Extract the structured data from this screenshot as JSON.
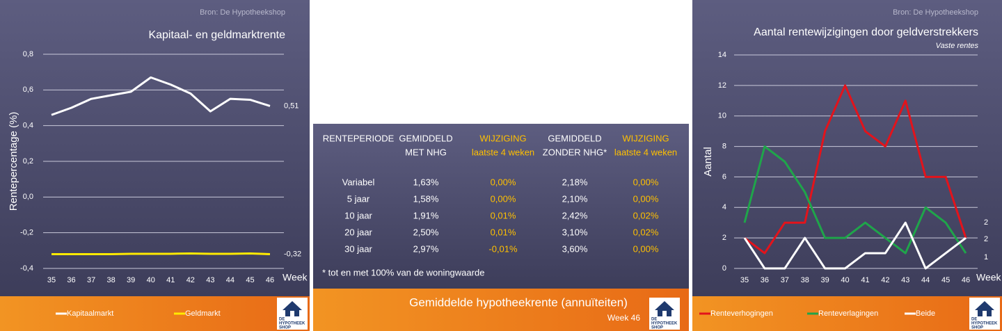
{
  "chart_data": [
    {
      "type": "line",
      "source": "Bron: De Hypotheekshop",
      "title": "Kapitaal- en geldmarktrente",
      "y_label": "Rentepercentage (%)",
      "x_label": "Week",
      "categories": [
        "35",
        "36",
        "37",
        "38",
        "39",
        "40",
        "41",
        "42",
        "43",
        "44",
        "45",
        "46"
      ],
      "ylim": [
        -0.4,
        0.8
      ],
      "yticks": [
        {
          "value": -0.4,
          "label": "-0,4"
        },
        {
          "value": -0.2,
          "label": "-0,2"
        },
        {
          "value": 0,
          "label": "0,0"
        },
        {
          "value": 0.2,
          "label": "0,2"
        },
        {
          "value": 0.4,
          "label": "0,4"
        },
        {
          "value": 0.6,
          "label": "0,6"
        },
        {
          "value": 0.8,
          "label": "0,8"
        }
      ],
      "grid": true,
      "series": [
        {
          "name": "Kapitaalmarkt",
          "color": "#ffffff",
          "values": [
            0.46,
            0.5,
            0.55,
            0.57,
            0.59,
            0.67,
            0.63,
            0.58,
            0.48,
            0.55,
            0.545,
            0.51
          ],
          "value_labels": [
            null,
            null,
            null,
            null,
            null,
            null,
            null,
            null,
            null,
            null,
            null,
            "0,51"
          ]
        },
        {
          "name": "Geldmarkt",
          "color": "#ffea00",
          "values": [
            -0.32,
            -0.32,
            -0.32,
            -0.32,
            -0.318,
            -0.318,
            -0.318,
            -0.316,
            -0.318,
            -0.318,
            -0.316,
            -0.32
          ],
          "value_labels": [
            null,
            null,
            null,
            null,
            null,
            null,
            null,
            null,
            null,
            null,
            null,
            "-0,32"
          ]
        }
      ]
    },
    {
      "type": "line",
      "source": "Bron: De Hypotheekshop",
      "title": "Aantal rentewijzigingen door geldverstrekkers",
      "subtitle": "Vaste rentes",
      "y_label": "Aantal",
      "x_label": "Week",
      "categories": [
        "35",
        "36",
        "37",
        "38",
        "39",
        "40",
        "41",
        "42",
        "43",
        "44",
        "45",
        "46"
      ],
      "ylim": [
        0,
        14
      ],
      "yticks": [
        0,
        2,
        4,
        6,
        8,
        10,
        12,
        14
      ],
      "grid": true,
      "series": [
        {
          "name": "Renteverhogingen",
          "color": "#e3131b",
          "values": [
            2,
            1,
            3,
            3,
            9,
            12,
            9,
            8,
            11,
            6,
            6,
            2
          ]
        },
        {
          "name": "Renteverlagingen",
          "color": "#1fa54a",
          "values": [
            3,
            8,
            7,
            5,
            2,
            2,
            3,
            2,
            1,
            4,
            3,
            1
          ]
        },
        {
          "name": "Beide",
          "color": "#ffffff",
          "values": [
            2,
            0,
            0,
            2,
            0,
            0,
            1,
            1,
            3,
            0,
            1,
            2
          ]
        }
      ]
    }
  ],
  "table": {
    "header": [
      [
        "RENTEPERIODE"
      ],
      [
        "GEMIDDELD",
        "MET NHG"
      ],
      [
        "WIJZIGING",
        "laatste 4 weken"
      ],
      [
        "GEMIDDELD",
        "ZONDER NHG*"
      ],
      [
        "WIJZIGING",
        "laatste 4 weken"
      ]
    ],
    "rows": [
      [
        "Variabel",
        "1,63%",
        "0,00%",
        "2,18%",
        "0,00%"
      ],
      [
        "5 jaar",
        "1,58%",
        "0,00%",
        "2,10%",
        "0,00%"
      ],
      [
        "10 jaar",
        "1,91%",
        "0,01%",
        "2,42%",
        "0,02%"
      ],
      [
        "20 jaar",
        "2,50%",
        "0,01%",
        "3,10%",
        "0,02%"
      ],
      [
        "30 jaar",
        "2,97%",
        "-0,01%",
        "3,60%",
        "0,00%"
      ]
    ],
    "footnote": "* tot en met 100% van de woningwaarde"
  },
  "footer": {
    "title": "Gemiddelde hypotheekrente (annuïteiten)",
    "week": "Week 46"
  },
  "logo": [
    "DE",
    "HYPOTHEEK",
    "SHOP"
  ]
}
